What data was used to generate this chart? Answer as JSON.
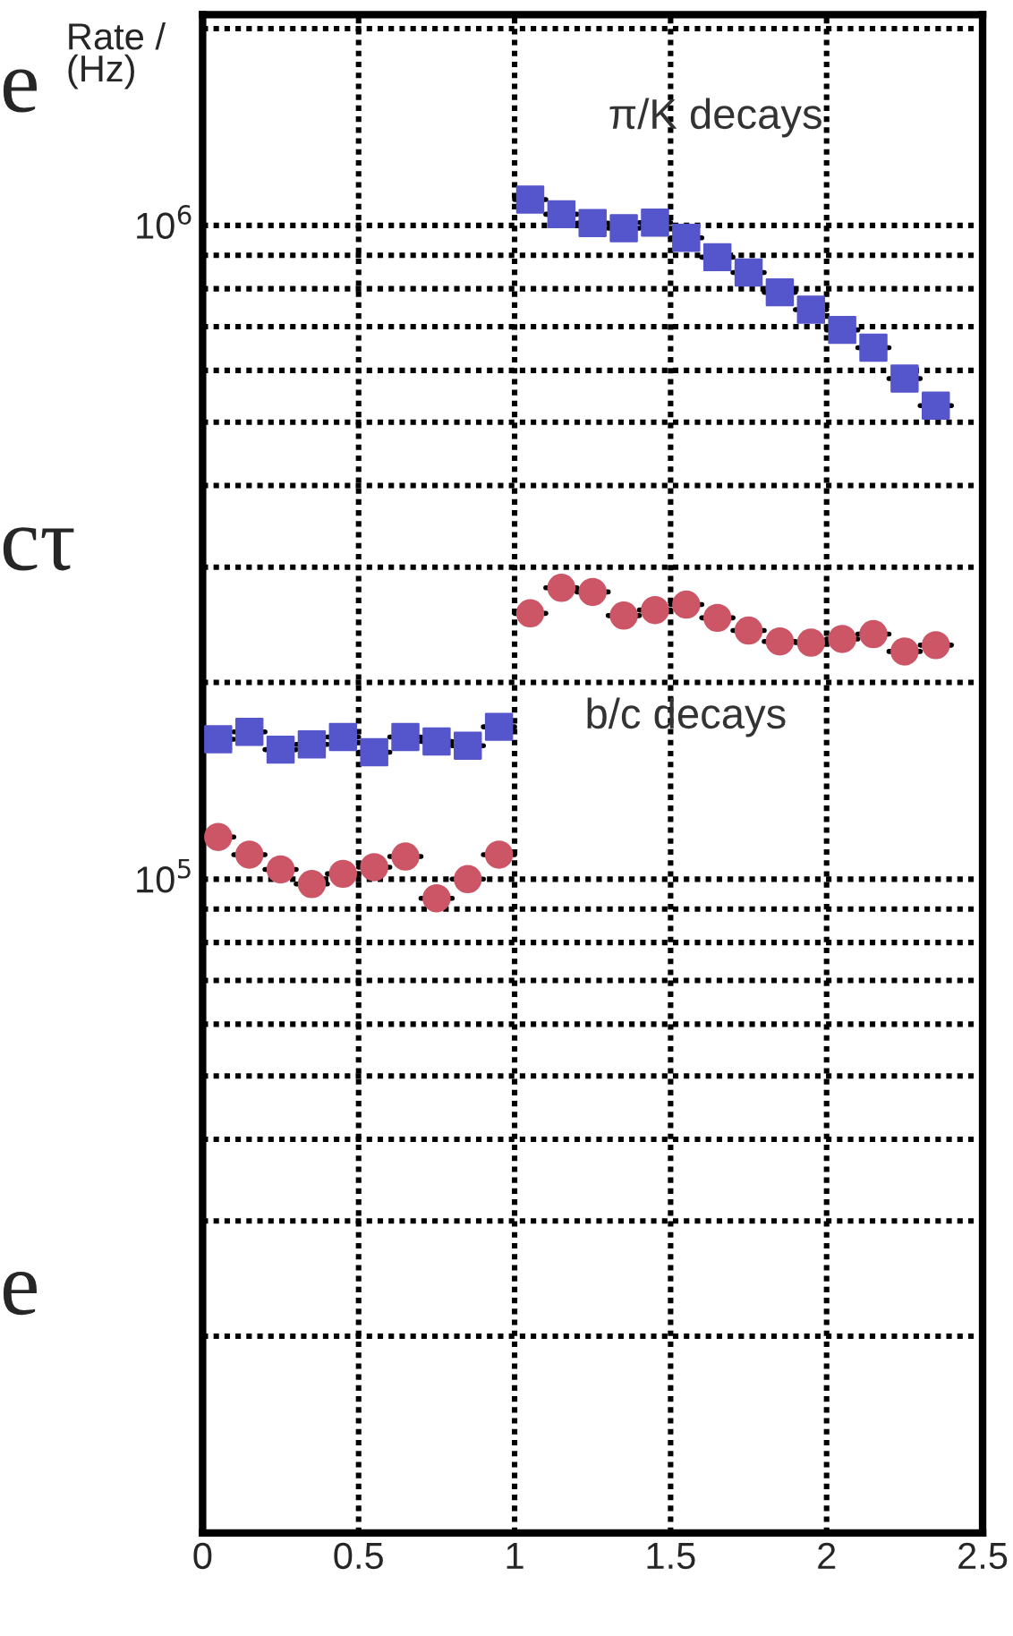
{
  "chart_data": {
    "type": "scatter",
    "ylabel": "Rate /\n(Hz)",
    "log": "y",
    "grid": true,
    "xlim": [
      0,
      2.5
    ],
    "xticks": [
      0,
      0.5,
      1,
      1.5,
      2,
      2.5
    ],
    "ylim": [
      10000,
      2100000
    ],
    "yticks": [
      {
        "value": 10000,
        "label": null
      },
      {
        "value": 20000,
        "label": null
      },
      {
        "value": 30000,
        "label": null
      },
      {
        "value": 40000,
        "label": null
      },
      {
        "value": 50000,
        "label": null
      },
      {
        "value": 60000,
        "label": null
      },
      {
        "value": 70000,
        "label": null
      },
      {
        "value": 80000,
        "label": null
      },
      {
        "value": 90000,
        "label": null
      },
      {
        "value": 100000,
        "label": "10$^{5}$"
      },
      {
        "value": 200000,
        "label": null
      },
      {
        "value": 300000,
        "label": null
      },
      {
        "value": 400000,
        "label": null
      },
      {
        "value": 500000,
        "label": null
      },
      {
        "value": 600000,
        "label": null
      },
      {
        "value": 700000,
        "label": null
      },
      {
        "value": 800000,
        "label": null
      },
      {
        "value": 900000,
        "label": null
      },
      {
        "value": 1000000,
        "label": "10$^{6}$"
      },
      {
        "value": 2000000,
        "label": null
      }
    ],
    "x": [
      0.05,
      0.15,
      0.25,
      0.35,
      0.45,
      0.55,
      0.65,
      0.75,
      0.85,
      0.95,
      1.05,
      1.15,
      1.25,
      1.35,
      1.45,
      1.55,
      1.65,
      1.75,
      1.85,
      1.95,
      2.05,
      2.15,
      2.25,
      2.35
    ],
    "series": [
      {
        "name": "π/K decays",
        "color": "#5555cc",
        "marker": "square",
        "values": [
          163700,
          168000,
          157800,
          160700,
          165000,
          156400,
          165000,
          162400,
          160000,
          171000,
          1095000,
          1040000,
          1008000,
          990000,
          1010000,
          957000,
          894000,
          847000,
          790000,
          743000,
          692000,
          650000,
          583000,
          530000
        ],
        "xerrors": [
          0.05,
          0.05,
          0.05,
          0.05,
          0.05,
          0.05,
          0.05,
          0.05,
          0.05,
          0.05,
          0.05,
          0.05,
          0.05,
          0.05,
          0.05,
          0.05,
          0.05,
          0.05,
          0.05,
          0.05,
          0.05,
          0.05,
          0.05,
          0.05
        ]
      },
      {
        "name": "b/c decays",
        "color": "#cc5566",
        "marker": "circle",
        "values": [
          116000,
          109000,
          103500,
          98300,
          101900,
          104300,
          108300,
          93500,
          100000,
          109000,
          255000,
          279000,
          275000,
          253000,
          258000,
          263000,
          251000,
          240000,
          231000,
          230000,
          233000,
          237000,
          223000,
          228000
        ],
        "xerrors": [
          0.05,
          0.05,
          0.05,
          0.05,
          0.05,
          0.05,
          0.05,
          0.05,
          0.05,
          0.05,
          0.05,
          0.05,
          0.05,
          0.05,
          0.05,
          0.05,
          0.05,
          0.05,
          0.05,
          0.05,
          0.05,
          0.05,
          0.05,
          0.05
        ]
      }
    ],
    "annotations": [
      "e",
      "cτ",
      "e"
    ]
  }
}
